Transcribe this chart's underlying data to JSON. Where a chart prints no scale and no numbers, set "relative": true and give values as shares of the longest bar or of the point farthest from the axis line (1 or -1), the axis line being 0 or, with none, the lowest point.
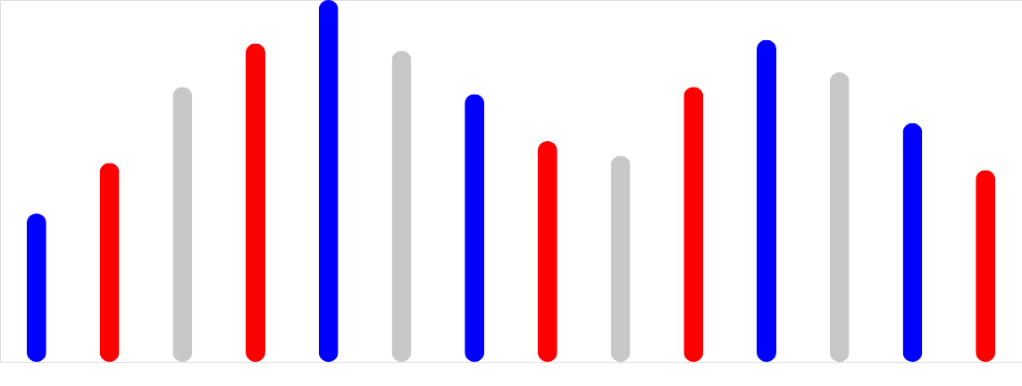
{
  "chart_data": {
    "type": "bar",
    "relative": true,
    "categories": [
      null,
      null,
      null,
      null,
      null,
      null,
      null,
      null,
      null,
      null,
      null,
      null,
      null,
      null
    ],
    "values": [
      0.41,
      0.55,
      0.76,
      0.88,
      1,
      0.86,
      0.74,
      0.61,
      0.57,
      0.76,
      0.89,
      0.8,
      0.66,
      0.53
    ],
    "colors": [
      "#0000ff",
      "#ff0000",
      "#c8c8c8",
      "#ff0000",
      "#0000ff",
      "#c8c8c8",
      "#0000ff",
      "#ff0000",
      "#c8c8c8",
      "#ff0000",
      "#0000ff",
      "#c8c8c8",
      "#0000ff",
      "#ff0000"
    ]
  }
}
